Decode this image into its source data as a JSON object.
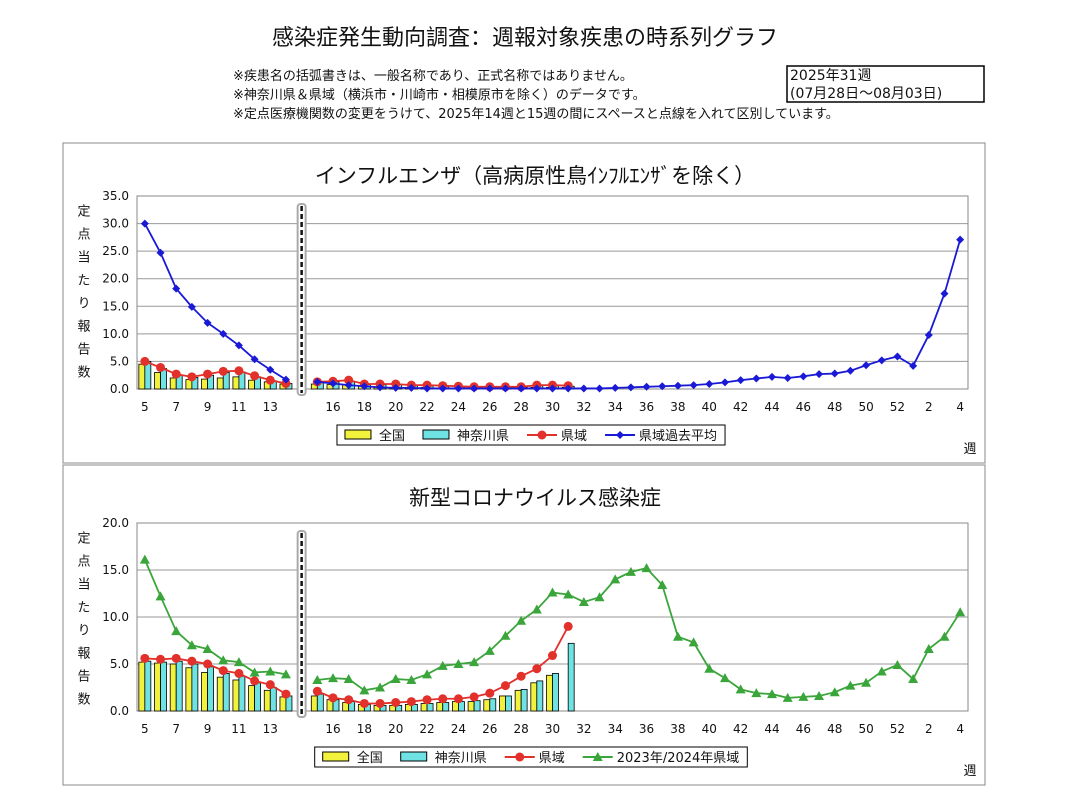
{
  "header": {
    "title": "感染症発生動向調査：週報対象疾患の時系列グラフ",
    "notes": [
      "※疾患名の括弧書きは、一般名称であり、正式名称ではありません。",
      "※神奈川県＆県域（横浜市・川崎市・相模原市を除く）のデータです。",
      "※定点医療機関数の変更をうけて、2025年14週と15週の間にスペースと点線を入れて区別しています。"
    ],
    "week_box": [
      "2025年31週",
      "(07月28日～08月03日)"
    ]
  },
  "chart_data": [
    {
      "type": "combo",
      "title": "インフルエンザ（高病原性鳥ｲﾝﾌﾙｴﾝｻﾞを除く）",
      "y_label": "定点当たり報告数",
      "x_label": "週",
      "categories": [
        "5",
        null,
        "7",
        null,
        "9",
        null,
        "11",
        null,
        "13",
        null,
        null,
        null,
        "16",
        null,
        "18",
        null,
        "20",
        null,
        "22",
        null,
        "24",
        null,
        "26",
        null,
        "28",
        null,
        "30",
        null,
        "32",
        null,
        "34",
        null,
        "36",
        null,
        "38",
        null,
        "40",
        null,
        "42",
        null,
        "44",
        null,
        "46",
        null,
        "48",
        null,
        "50",
        null,
        "52",
        null,
        "2",
        null,
        "4"
      ],
      "ylim": [
        0,
        35
      ],
      "yticks": [
        {
          "value": 0,
          "label": "0.0"
        },
        {
          "value": 5,
          "label": "5.0"
        },
        {
          "value": 10,
          "label": "10.0"
        },
        {
          "value": 15,
          "label": "15.0"
        },
        {
          "value": 20,
          "label": "20.0"
        },
        {
          "value": 25,
          "label": "25.0"
        },
        {
          "value": 30,
          "label": "30.0"
        },
        {
          "value": 35,
          "label": "35.0"
        }
      ],
      "grid": true,
      "legend": "bottom",
      "series": [
        {
          "name": "全国",
          "kind": "bar",
          "color": "#f2f23c",
          "values": [
            4.5,
            3.0,
            2.0,
            1.7,
            1.8,
            2.0,
            2.2,
            1.6,
            1.3,
            0.9,
            null,
            0.9,
            0.8,
            0.7,
            0.5,
            0.4,
            0.3,
            0.3,
            0.3,
            0.2,
            0.2,
            0.2,
            0.2,
            0.2,
            0.2,
            0.3,
            0.3,
            0.3,
            null,
            null,
            null,
            null,
            null,
            null,
            null,
            null,
            null,
            null,
            null,
            null,
            null,
            null,
            null,
            null,
            null,
            null,
            null,
            null,
            null,
            null,
            null,
            null,
            null
          ]
        },
        {
          "name": "神奈川県",
          "kind": "bar",
          "color": "#6fe3e3",
          "values": [
            5.0,
            3.7,
            2.5,
            2.1,
            2.5,
            3.0,
            3.1,
            2.2,
            1.5,
            1.0,
            null,
            1.2,
            1.3,
            1.4,
            0.8,
            0.8,
            0.8,
            0.6,
            0.6,
            0.5,
            0.4,
            0.3,
            0.3,
            0.3,
            0.3,
            0.6,
            0.6,
            0.5,
            null,
            null,
            null,
            null,
            null,
            null,
            null,
            null,
            null,
            null,
            null,
            null,
            null,
            null,
            null,
            null,
            null,
            null,
            null,
            null,
            null,
            null,
            null,
            null,
            null
          ]
        },
        {
          "name": "県域",
          "kind": "line",
          "marker": "circle",
          "color": "#e2302a",
          "values": [
            5.0,
            3.9,
            2.7,
            2.2,
            2.7,
            3.2,
            3.3,
            2.4,
            1.6,
            1.0,
            null,
            1.3,
            1.4,
            1.6,
            0.9,
            0.9,
            0.9,
            0.7,
            0.7,
            0.6,
            0.5,
            0.4,
            0.4,
            0.4,
            0.4,
            0.7,
            0.7,
            0.6,
            null,
            null,
            null,
            null,
            null,
            null,
            null,
            null,
            null,
            null,
            null,
            null,
            null,
            null,
            null,
            null,
            null,
            null,
            null,
            null,
            null,
            null,
            null,
            null,
            null
          ]
        },
        {
          "name": "県域過去平均",
          "kind": "line",
          "marker": "diamond",
          "color": "#1a1ad6",
          "values": [
            30.0,
            24.7,
            18.2,
            14.9,
            12.0,
            10.0,
            7.9,
            5.4,
            3.5,
            1.7,
            null,
            1.3,
            1.0,
            0.7,
            0.5,
            0.3,
            0.2,
            0.2,
            0.1,
            0.1,
            0.1,
            0.1,
            0.1,
            0.1,
            0.1,
            0.1,
            0.1,
            0.1,
            0.1,
            0.1,
            0.2,
            0.3,
            0.4,
            0.5,
            0.6,
            0.7,
            0.9,
            1.2,
            1.6,
            1.9,
            2.2,
            2.0,
            2.3,
            2.7,
            2.8,
            3.3,
            4.3,
            5.2,
            5.9,
            4.2,
            9.8,
            17.3,
            27.1
          ]
        }
      ]
    },
    {
      "type": "combo",
      "title": "新型コロナウイルス感染症",
      "y_label": "定点当たり報告数",
      "x_label": "週",
      "categories": [
        "5",
        null,
        "7",
        null,
        "9",
        null,
        "11",
        null,
        "13",
        null,
        null,
        null,
        "16",
        null,
        "18",
        null,
        "20",
        null,
        "22",
        null,
        "24",
        null,
        "26",
        null,
        "28",
        null,
        "30",
        null,
        "32",
        null,
        "34",
        null,
        "36",
        null,
        "38",
        null,
        "40",
        null,
        "42",
        null,
        "44",
        null,
        "46",
        null,
        "48",
        null,
        "50",
        null,
        "52",
        null,
        "2",
        null,
        "4"
      ],
      "ylim": [
        0,
        20
      ],
      "yticks": [
        {
          "value": 0,
          "label": "0.0"
        },
        {
          "value": 5,
          "label": "5.0"
        },
        {
          "value": 10,
          "label": "10.0"
        },
        {
          "value": 15,
          "label": "15.0"
        },
        {
          "value": 20,
          "label": "20.0"
        }
      ],
      "grid": true,
      "legend": "bottom",
      "series": [
        {
          "name": "全国",
          "kind": "bar",
          "color": "#f2f23c",
          "values": [
            5.2,
            5.1,
            5.0,
            4.6,
            4.1,
            3.6,
            3.3,
            2.7,
            2.2,
            1.5,
            null,
            1.6,
            1.2,
            0.9,
            0.7,
            0.6,
            0.6,
            0.7,
            0.8,
            0.9,
            1.0,
            1.0,
            1.2,
            1.6,
            2.2,
            3.0,
            3.8,
            null,
            null,
            null,
            null,
            null,
            null,
            null,
            null,
            null,
            null,
            null,
            null,
            null,
            null,
            null,
            null,
            null,
            null,
            null,
            null,
            null,
            null,
            null,
            null,
            null,
            null
          ]
        },
        {
          "name": "神奈川県",
          "kind": "bar",
          "color": "#6fe3e3",
          "values": [
            5.3,
            5.2,
            5.3,
            5.0,
            4.7,
            4.0,
            3.7,
            3.0,
            2.5,
            1.6,
            null,
            1.8,
            1.2,
            1.0,
            0.7,
            0.6,
            0.6,
            0.7,
            0.8,
            0.9,
            1.0,
            1.1,
            1.3,
            1.6,
            2.3,
            3.2,
            4.0,
            7.2,
            null,
            null,
            null,
            null,
            null,
            null,
            null,
            null,
            null,
            null,
            null,
            null,
            null,
            null,
            null,
            null,
            null,
            null,
            null,
            null,
            null,
            null,
            null,
            null,
            null
          ]
        },
        {
          "name": "県域",
          "kind": "line",
          "marker": "circle",
          "color": "#e2302a",
          "values": [
            5.6,
            5.5,
            5.6,
            5.3,
            5.0,
            4.3,
            4.0,
            3.2,
            2.8,
            1.8,
            null,
            2.1,
            1.4,
            1.2,
            0.8,
            0.8,
            0.9,
            1.0,
            1.2,
            1.3,
            1.3,
            1.5,
            1.9,
            2.7,
            3.7,
            4.5,
            5.9,
            9.0,
            null,
            null,
            null,
            null,
            null,
            null,
            null,
            null,
            null,
            null,
            null,
            null,
            null,
            null,
            null,
            null,
            null,
            null,
            null,
            null,
            null,
            null,
            null,
            null,
            null
          ]
        },
        {
          "name": "2023年/2024年県域",
          "kind": "line",
          "marker": "triangle",
          "color": "#3aa53a",
          "values": [
            16.1,
            12.2,
            8.5,
            7.0,
            6.6,
            5.4,
            5.2,
            4.1,
            4.2,
            3.9,
            null,
            3.3,
            3.5,
            3.4,
            2.2,
            2.5,
            3.4,
            3.3,
            3.9,
            4.8,
            5.0,
            5.2,
            6.4,
            8.0,
            9.6,
            10.8,
            12.6,
            12.4,
            11.6,
            12.1,
            14.0,
            14.8,
            15.2,
            13.4,
            7.9,
            7.3,
            4.5,
            3.5,
            2.3,
            1.9,
            1.8,
            1.4,
            1.5,
            1.6,
            2.0,
            2.7,
            3.0,
            4.2,
            4.9,
            3.4,
            6.6,
            7.9,
            10.5
          ]
        }
      ]
    }
  ]
}
